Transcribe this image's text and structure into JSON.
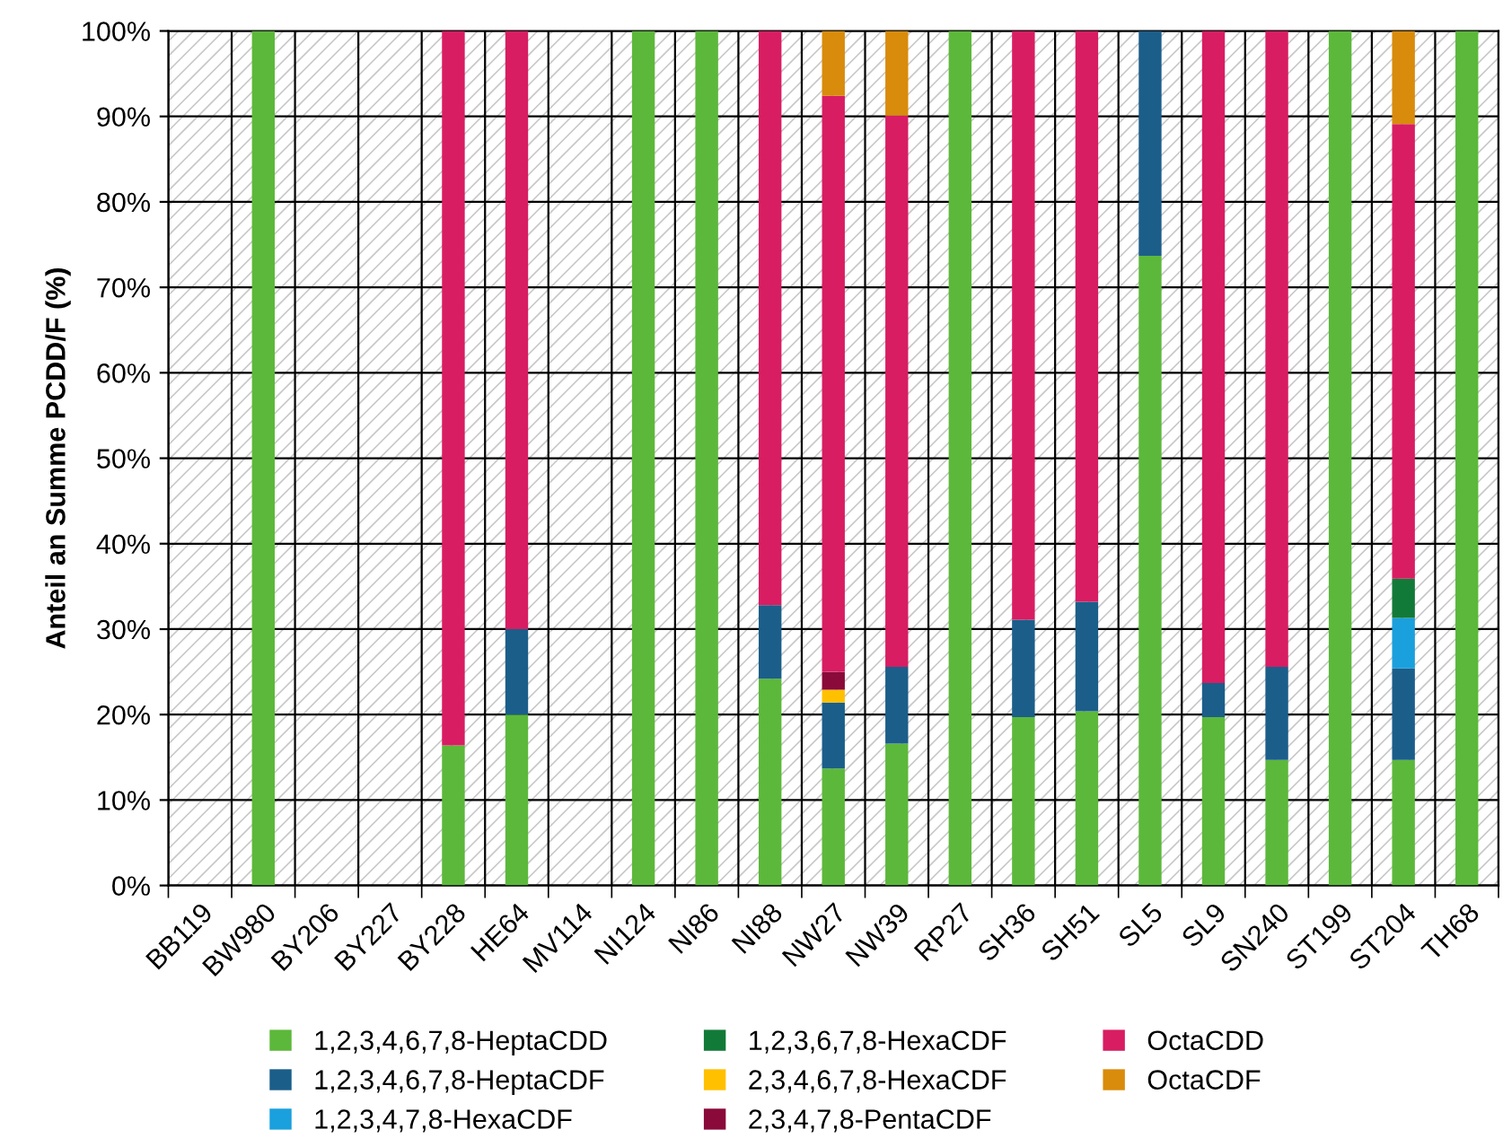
{
  "chart_data": {
    "type": "bar",
    "stacked": true,
    "ylabel": "Anteil an Summe PCDD/F (%)",
    "categories": [
      "BB119",
      "BW980",
      "BY206",
      "BY227",
      "BY228",
      "HE64",
      "MV114",
      "NI124",
      "NI86",
      "NI88",
      "NW27",
      "NW39",
      "RP27",
      "SH36",
      "SH51",
      "SL5",
      "SL9",
      "SN240",
      "ST199",
      "ST204",
      "TH68"
    ],
    "series": [
      {
        "name": "1,2,3,4,6,7,8-HeptaCDD",
        "color": "#5cb83a",
        "values": [
          0,
          100,
          0,
          0,
          16.4,
          20,
          0,
          100,
          100,
          24.2,
          13.7,
          16.6,
          100,
          19.7,
          20.4,
          73.7,
          19.7,
          14.7,
          100,
          14.7,
          100
        ]
      },
      {
        "name": "1,2,3,4,6,7,8-HeptaCDF",
        "color": "#1b5e8a",
        "values": [
          0,
          0,
          0,
          0,
          0,
          10,
          0,
          0,
          0,
          8.6,
          7.7,
          9,
          0,
          11.4,
          12.8,
          26.3,
          4,
          10.9,
          0,
          10.7,
          0
        ]
      },
      {
        "name": "1,2,3,4,7,8-HexaCDF",
        "color": "#1aa0dd",
        "values": [
          0,
          0,
          0,
          0,
          0,
          0,
          0,
          0,
          0,
          0,
          0,
          0,
          0,
          0,
          0,
          0,
          0,
          0,
          0,
          5.9,
          0
        ]
      },
      {
        "name": "1,2,3,6,7,8-HexaCDF",
        "color": "#127a38",
        "values": [
          0,
          0,
          0,
          0,
          0,
          0,
          0,
          0,
          0,
          0,
          0,
          0,
          0,
          0,
          0,
          0,
          0,
          0,
          0,
          4.6,
          0
        ]
      },
      {
        "name": "2,3,4,6,7,8-HexaCDF",
        "color": "#ffc000",
        "values": [
          0,
          0,
          0,
          0,
          0,
          0,
          0,
          0,
          0,
          0,
          1.5,
          0,
          0,
          0,
          0,
          0,
          0,
          0,
          0,
          0,
          0
        ]
      },
      {
        "name": "2,3,4,7,8-PentaCDF",
        "color": "#8a0a3a",
        "values": [
          0,
          0,
          0,
          0,
          0,
          0,
          0,
          0,
          0,
          0,
          2.1,
          0,
          0,
          0,
          0,
          0,
          0,
          0,
          0,
          0,
          0
        ]
      },
      {
        "name": "OctaCDD",
        "color": "#d81d62",
        "values": [
          0,
          0,
          0,
          0,
          83.6,
          70,
          0,
          0,
          0,
          67.2,
          67.4,
          64.5,
          0,
          68.9,
          66.8,
          0,
          76.3,
          74.4,
          0,
          53.2,
          0
        ]
      },
      {
        "name": "OctaCDF",
        "color": "#d98b0b",
        "values": [
          0,
          0,
          0,
          0,
          0,
          0,
          0,
          0,
          0,
          0,
          7.6,
          9.9,
          0,
          0,
          0,
          0,
          0,
          0,
          0,
          10.9,
          0
        ]
      }
    ],
    "ylim": [
      0,
      100
    ],
    "yticks": [
      {
        "value": 0,
        "label": "0%"
      },
      {
        "value": 10,
        "label": "10%"
      },
      {
        "value": 20,
        "label": "20%"
      },
      {
        "value": 30,
        "label": "30%"
      },
      {
        "value": 40,
        "label": "40%"
      },
      {
        "value": 50,
        "label": "50%"
      },
      {
        "value": 60,
        "label": "60%"
      },
      {
        "value": 70,
        "label": "70%"
      },
      {
        "value": 80,
        "label": "80%"
      },
      {
        "value": 90,
        "label": "90%"
      },
      {
        "value": 100,
        "label": "100%"
      }
    ],
    "grid": true,
    "legend": "bottom"
  }
}
